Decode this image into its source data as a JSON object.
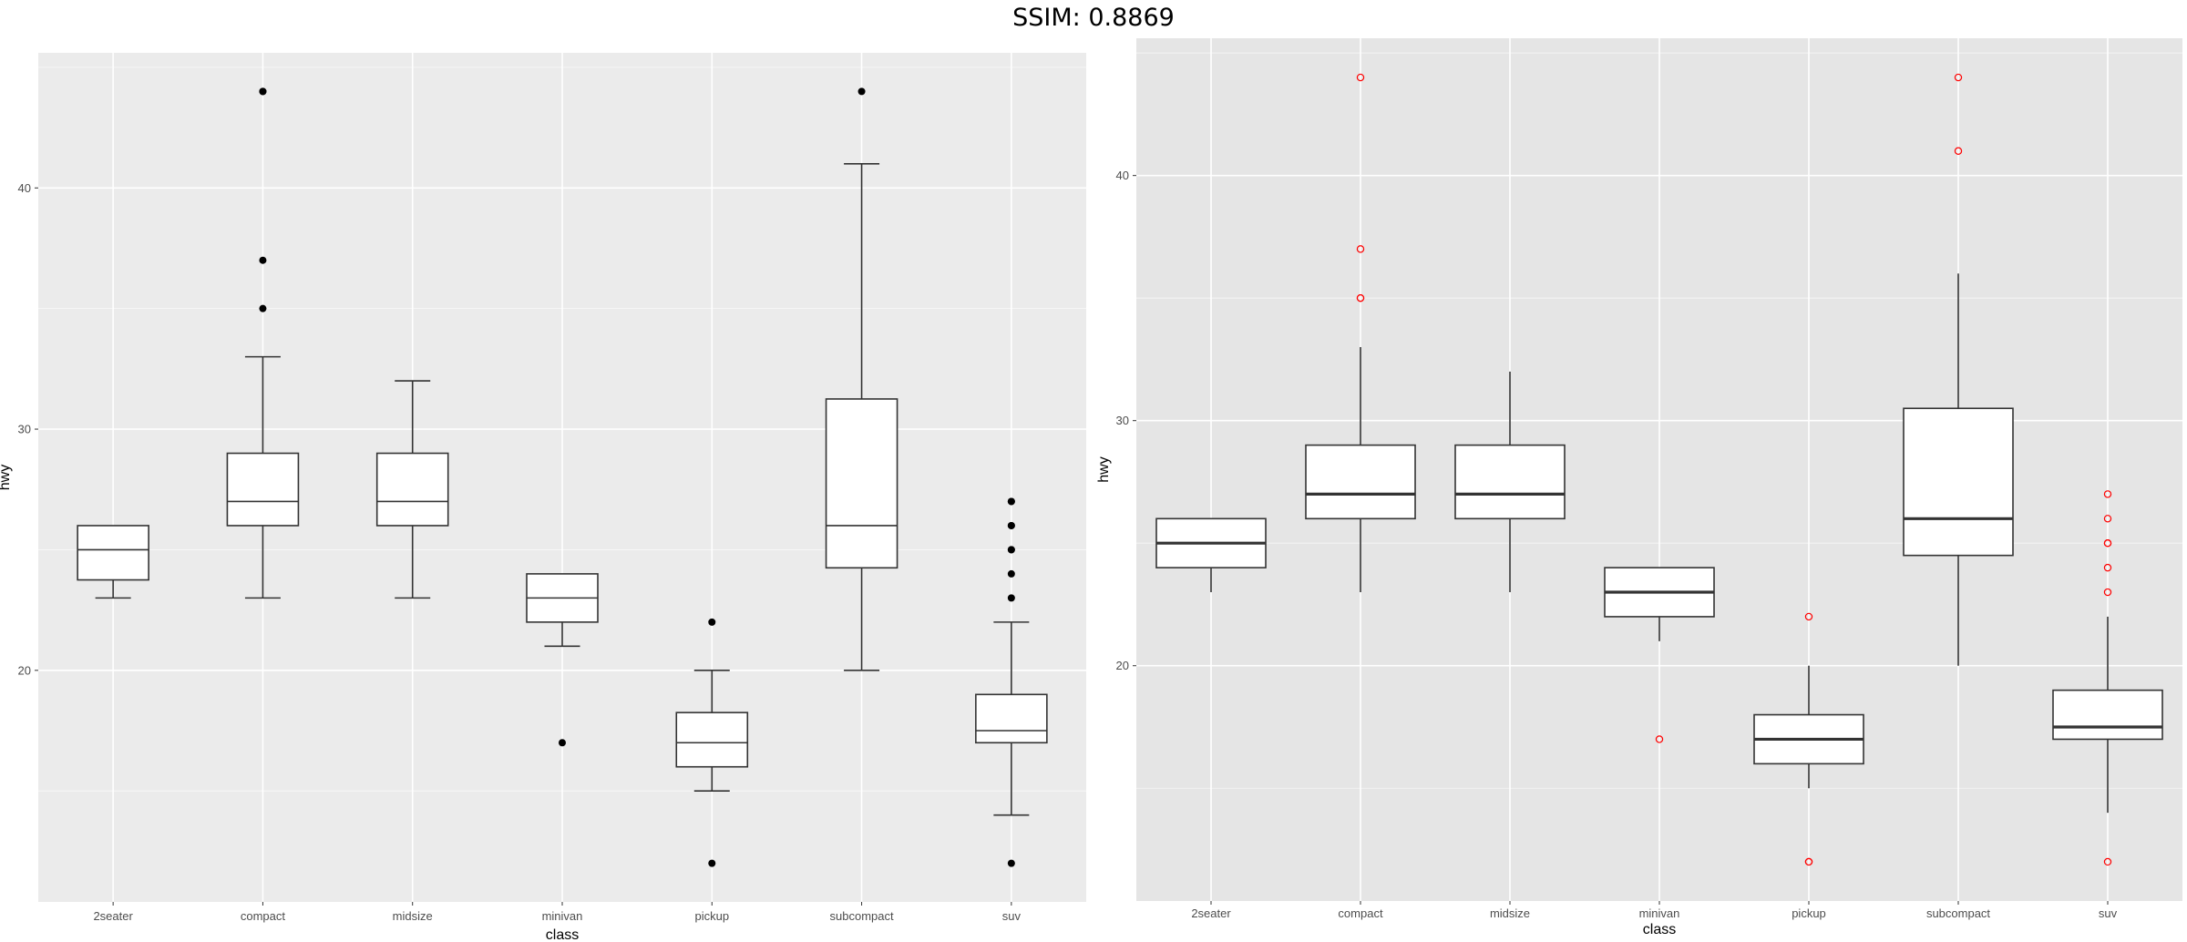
{
  "title": "SSIM: 0.8869",
  "chart_data": [
    {
      "type": "box",
      "xlabel": "class",
      "ylabel": "hwy",
      "categories": [
        "2seater",
        "compact",
        "midsize",
        "minivan",
        "pickup",
        "subcompact",
        "suv"
      ],
      "yticks": [
        20,
        30,
        40
      ],
      "ylim": [
        10.4,
        45.6
      ],
      "grid": true,
      "panel_color": "#EBEBEB",
      "grid_color": "#FFFFFF",
      "box_fill": "#FFFFFF",
      "box_stroke": "#333333",
      "outlier_color": "#000000",
      "outlier_style": "filled",
      "boxes": [
        {
          "category": "2seater",
          "low": 23,
          "q1": 23.75,
          "median": 25,
          "q3": 26,
          "high": 26,
          "outliers": []
        },
        {
          "category": "compact",
          "low": 23,
          "q1": 26,
          "median": 27,
          "q3": 29,
          "high": 33,
          "outliers": [
            35,
            37,
            44,
            44
          ]
        },
        {
          "category": "midsize",
          "low": 23,
          "q1": 26,
          "median": 27,
          "q3": 29,
          "high": 32,
          "outliers": []
        },
        {
          "category": "minivan",
          "low": 21,
          "q1": 22,
          "median": 23,
          "q3": 24,
          "high": 24,
          "outliers": [
            17
          ]
        },
        {
          "category": "pickup",
          "low": 15,
          "q1": 16,
          "median": 17,
          "q3": 18.25,
          "high": 20,
          "outliers": [
            12,
            22
          ]
        },
        {
          "category": "subcompact",
          "low": 20,
          "q1": 24.25,
          "median": 26,
          "q3": 31.25,
          "high": 41,
          "outliers": [
            44
          ]
        },
        {
          "category": "suv",
          "low": 14,
          "q1": 17,
          "median": 17.5,
          "q3": 19,
          "high": 22,
          "outliers": [
            12,
            23,
            24,
            25,
            25,
            26,
            26,
            27,
            27
          ]
        }
      ]
    },
    {
      "type": "box",
      "xlabel": "class",
      "ylabel": "hwy",
      "categories": [
        "2seater",
        "compact",
        "midsize",
        "minivan",
        "pickup",
        "subcompact",
        "suv"
      ],
      "yticks": [
        20,
        30,
        40
      ],
      "ylim": [
        10.4,
        45.6
      ],
      "grid": true,
      "panel_color": "#E5E5E5",
      "grid_color": "#FFFFFF",
      "box_fill": "#FFFFFF",
      "box_stroke": "#333333",
      "outlier_color": "#FF0000",
      "outlier_style": "hollow",
      "boxes": [
        {
          "category": "2seater",
          "low": 23,
          "q1": 24,
          "median": 25,
          "q3": 26,
          "high": 26,
          "outliers": []
        },
        {
          "category": "compact",
          "low": 23,
          "q1": 26,
          "median": 27,
          "q3": 29,
          "high": 33,
          "outliers": [
            35,
            35,
            37,
            44
          ]
        },
        {
          "category": "midsize",
          "low": 23,
          "q1": 26,
          "median": 27,
          "q3": 29,
          "high": 32,
          "outliers": []
        },
        {
          "category": "minivan",
          "low": 21,
          "q1": 22,
          "median": 23,
          "q3": 24,
          "high": 24,
          "outliers": [
            17
          ]
        },
        {
          "category": "pickup",
          "low": 15,
          "q1": 16,
          "median": 17,
          "q3": 18,
          "high": 20,
          "outliers": [
            12,
            12,
            22
          ]
        },
        {
          "category": "subcompact",
          "low": 20,
          "q1": 24.5,
          "median": 26,
          "q3": 30.5,
          "high": 36,
          "outliers": [
            41,
            44
          ]
        },
        {
          "category": "suv",
          "low": 14,
          "q1": 17,
          "median": 17.5,
          "q3": 19,
          "high": 22,
          "outliers": [
            12,
            23,
            24,
            25,
            25,
            26,
            27
          ]
        }
      ]
    }
  ]
}
